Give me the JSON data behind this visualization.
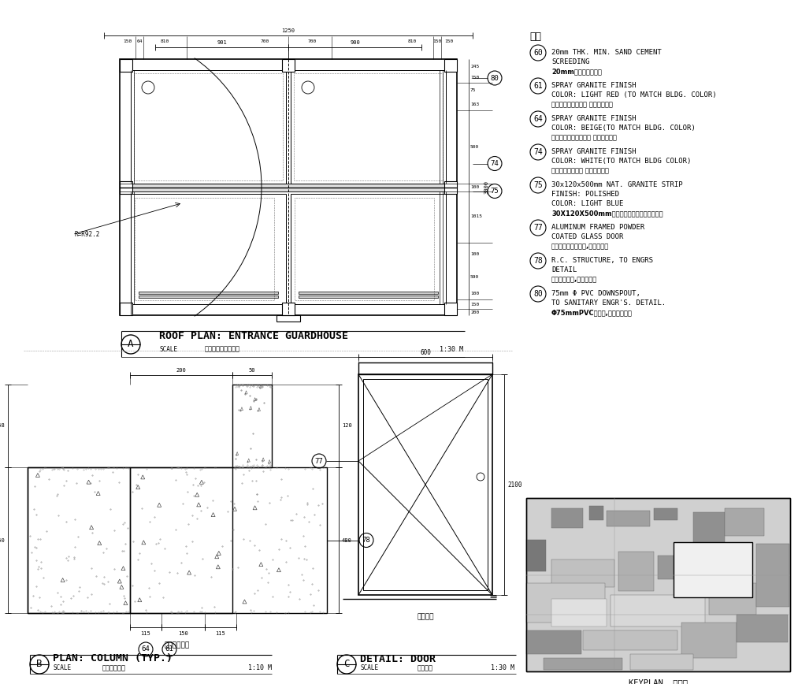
{
  "bg_color": "#ffffff",
  "line_color": "#000000",
  "legend_title": "注解",
  "legend_items": [
    {
      "num": "60",
      "en1": "20mm THK. MIN. SAND CEMENT",
      "en2": "SCREEDING",
      "cn": "20mm普通砂浆找平层"
    },
    {
      "num": "61",
      "en1": "SPRAY GRANITE FINISH",
      "en2": "COLOR: LIGHT RED (TO MATCH BLDG. COLOR)",
      "cn": "浅红色外墙涂料面层 与球场点匹配"
    },
    {
      "num": "64",
      "en1": "SPRAY GRANITE FINISH",
      "en2": "COLOR: BEIGE(TO MATCH BLDG. COLOR)",
      "cn": "泮液黄色外墙涂料面层 与球场色匹配"
    },
    {
      "num": "74",
      "en1": "SPRAY GRANITE FINISH",
      "en2": "COLOR: WHITE(TO MATCH BLDG COLOR)",
      "cn": "白色外墙涂料面层 与球场色匹配"
    },
    {
      "num": "75",
      "en1": "30x120x500mm NAT. GRANITE STRIP",
      "en2": "FINISH: POLISHED",
      "en3": "COLOR: LIGHT BLUE",
      "cn": "30X120X500mm浅蓝色抛光花岗石条（光面）"
    },
    {
      "num": "77",
      "en1": "ALUMINUM FRAMED POWDER",
      "en2": "COATED GLASS DOOR",
      "cn": "本色烤漆铝合金重量,黑色玻璃门"
    },
    {
      "num": "78",
      "en1": "R.C. STRUCTURE, TO ENGRS",
      "en2": "DETAIL",
      "cn": "钢筋混凝土柱,见工程师图"
    },
    {
      "num": "80",
      "en1": "75mm Φ PVC DOWNSPOUT,",
      "en2": "TO SANITARY ENGR'S. DETAIL.",
      "cn": "Φ75mmPVC落水管,见卫机师大样"
    }
  ],
  "section_a_title": "ROOF PLAN: ENTRANCE GUARDHOUSE",
  "section_a_cn": "入口保安室顶平面图",
  "section_a_scale": "1:30 M",
  "section_b_title": "PLAN: COLUMN (TYP.)",
  "section_b_cn": "柱子平剖面图",
  "section_b_scale": "1:10 M",
  "section_c_title": "DETAIL: DOOR",
  "section_c_cn": "门大样图",
  "section_c_scale": "1:30 M",
  "keyplan_label": "KEYPLAN  索引图"
}
